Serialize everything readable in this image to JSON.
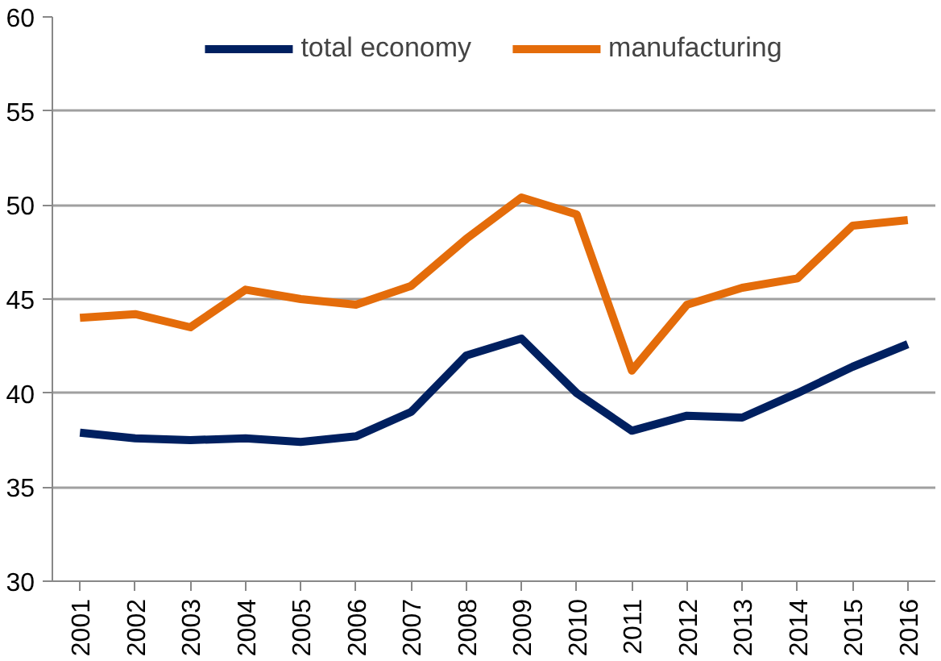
{
  "chart_data": {
    "type": "line",
    "categories": [
      "2001",
      "2002",
      "2003",
      "2004",
      "2005",
      "2006",
      "2007",
      "2008",
      "2009",
      "2010",
      "2011",
      "2012",
      "2013",
      "2014",
      "2015",
      "2016"
    ],
    "series": [
      {
        "name": "total economy",
        "color": "#002060",
        "values": [
          37.9,
          37.6,
          37.5,
          37.6,
          37.4,
          37.7,
          39.0,
          42.0,
          42.9,
          40.0,
          38.0,
          38.8,
          38.7,
          40.0,
          41.4,
          42.6
        ]
      },
      {
        "name": "manufacturing",
        "color": "#e46c0a",
        "values": [
          44.0,
          44.2,
          43.5,
          45.5,
          45.0,
          44.7,
          45.7,
          48.2,
          50.4,
          49.5,
          41.2,
          44.7,
          45.6,
          46.1,
          48.9,
          49.2
        ]
      }
    ],
    "ylim": [
      30,
      60
    ],
    "yticks": [
      30,
      35,
      40,
      45,
      50,
      55,
      60
    ],
    "grid": "y",
    "legend": "top",
    "line_style": "solid"
  }
}
